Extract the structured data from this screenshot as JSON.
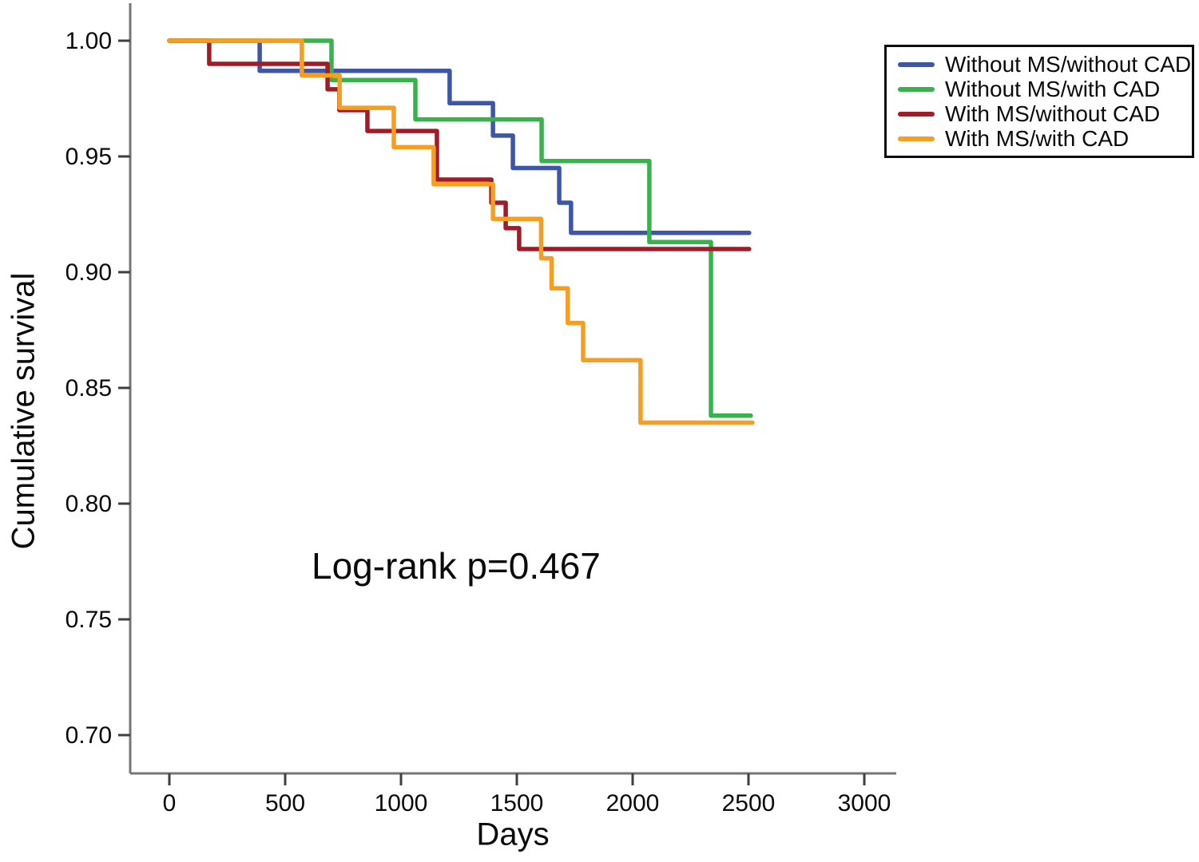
{
  "figure": {
    "xlabel": "Days",
    "ylabel": "Cumulative survival",
    "annotation": "Log-rank p=0.467"
  },
  "legend": {
    "position": "upper-right",
    "items": [
      {
        "label": "Without MS/without CAD",
        "color": "#3E56A6"
      },
      {
        "label": "Without MS/with CAD",
        "color": "#36B44B"
      },
      {
        "label": "With MS/without CAD",
        "color": "#A01D28"
      },
      {
        "label": "With MS/with CAD",
        "color": "#F59E20"
      }
    ]
  },
  "chart_data": {
    "type": "line",
    "subtype": "kaplan-meier-step",
    "title": "",
    "xlabel": "Days",
    "ylabel": "Cumulative survival",
    "x_ticks": [
      0,
      500,
      1000,
      1500,
      2000,
      2500,
      3000
    ],
    "y_tick_labels": [
      "1.00",
      "0.95",
      "0.90",
      "0.85",
      "0.80",
      "0.75",
      "0.70"
    ],
    "y_ticks": [
      1.0,
      0.95,
      0.9,
      0.85,
      0.8,
      0.75,
      0.7
    ],
    "xlim": [
      -170,
      3140
    ],
    "ylim": [
      0.683,
      1.016
    ],
    "grid": false,
    "legend_position": "upper right",
    "annotation": {
      "text": "Log-rank p=0.467",
      "x_day": 620,
      "y_value": 0.775
    },
    "series": [
      {
        "name": "Without MS/without CAD",
        "color": "#3E56A6",
        "steps": [
          [
            0,
            1.0
          ],
          [
            390,
            0.987
          ],
          [
            1210,
            0.973
          ],
          [
            1397,
            0.959
          ],
          [
            1483,
            0.945
          ],
          [
            1683,
            0.93
          ],
          [
            1734,
            0.917
          ]
        ],
        "end_day": 2503,
        "final_value": 0.917
      },
      {
        "name": "Without MS/with CAD",
        "color": "#36B44B",
        "steps": [
          [
            0,
            1.0
          ],
          [
            700,
            0.983
          ],
          [
            1062,
            0.966
          ],
          [
            1607,
            0.948
          ],
          [
            2072,
            0.913
          ],
          [
            2338,
            0.838
          ]
        ],
        "end_day": 2510,
        "final_value": 0.838
      },
      {
        "name": "With MS/without CAD",
        "color": "#A01D28",
        "steps": [
          [
            0,
            1.0
          ],
          [
            172,
            0.99
          ],
          [
            683,
            0.979
          ],
          [
            734,
            0.97
          ],
          [
            855,
            0.961
          ],
          [
            1155,
            0.94
          ],
          [
            1390,
            0.93
          ],
          [
            1452,
            0.919
          ],
          [
            1510,
            0.91
          ]
        ],
        "end_day": 2503,
        "final_value": 0.91
      },
      {
        "name": "With MS/with CAD",
        "color": "#F59E20",
        "steps": [
          [
            0,
            1.0
          ],
          [
            572,
            0.985
          ],
          [
            735,
            0.971
          ],
          [
            969,
            0.954
          ],
          [
            1141,
            0.938
          ],
          [
            1397,
            0.923
          ],
          [
            1605,
            0.906
          ],
          [
            1650,
            0.893
          ],
          [
            1720,
            0.878
          ],
          [
            1786,
            0.862
          ],
          [
            2034,
            0.835
          ]
        ],
        "end_day": 2517,
        "final_value": 0.835
      }
    ]
  }
}
